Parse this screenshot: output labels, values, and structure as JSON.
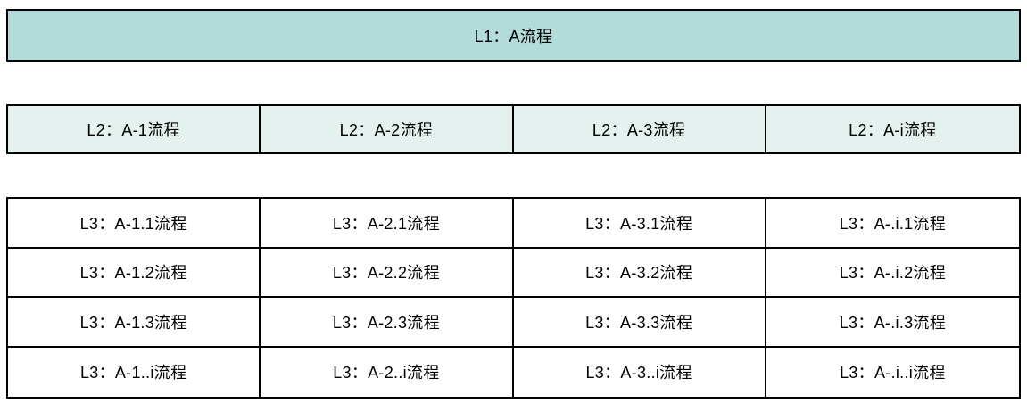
{
  "palette": {
    "l1_bg": "#b2dbd9",
    "l2_bg": "#e4f1ee",
    "l3_bg": "#ffffff",
    "border": "#000000",
    "text": "#000000"
  },
  "l1": {
    "label": "L1：A流程"
  },
  "l2": {
    "cells": [
      "L2：A-1流程",
      "L2：A-2流程",
      "L2：A-3流程",
      "L2：A-i流程"
    ]
  },
  "l3": {
    "rows": [
      [
        "L3：A-1.1流程",
        "L3：A-2.1流程",
        "L3：A-3.1流程",
        "L3：A-.i.1流程"
      ],
      [
        "L3：A-1.2流程",
        "L3：A-2.2流程",
        "L3：A-3.2流程",
        "L3：A-.i.2流程"
      ],
      [
        "L3：A-1.3流程",
        "L3：A-2.3流程",
        "L3：A-3.3流程",
        "L3：A-.i.3流程"
      ],
      [
        "L3：A-1..i流程",
        "L3：A-2..i流程",
        "L3：A-3..i流程",
        "L3：A-.i..i流程"
      ]
    ]
  }
}
